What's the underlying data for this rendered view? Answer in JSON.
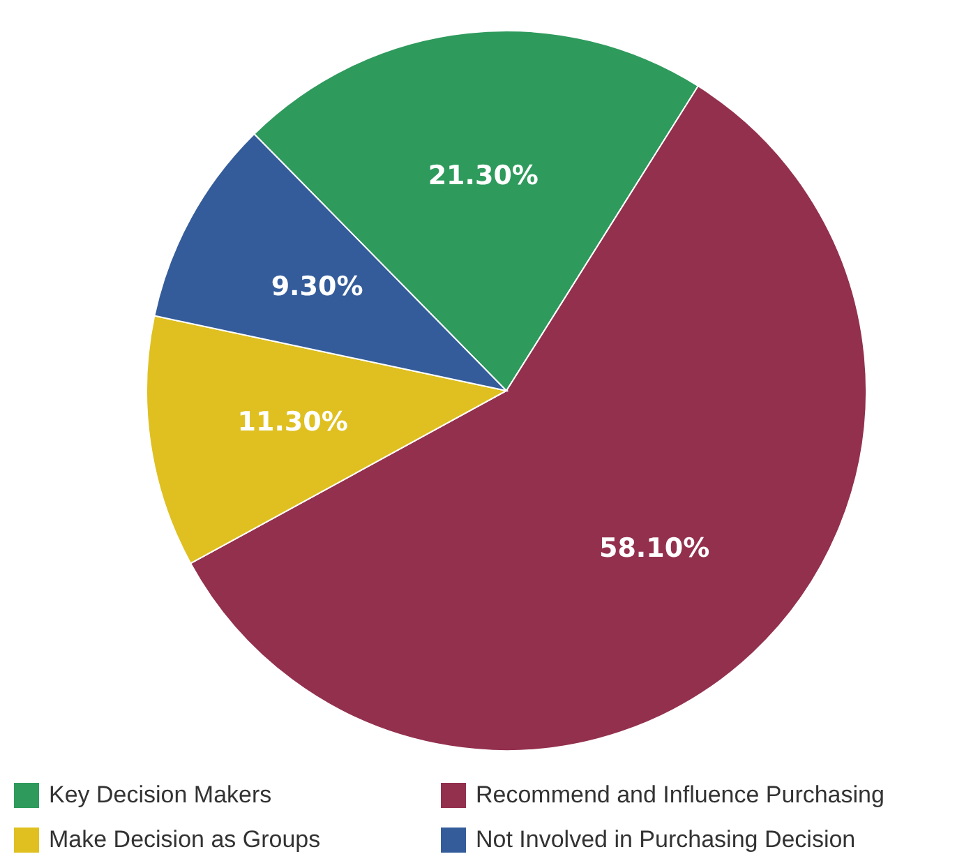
{
  "chart_data": {
    "type": "pie",
    "categories": [
      "Key Decision Makers",
      "Recommend and Influence Purchasing",
      "Make Decision as Groups",
      "Not Involved in Purchasing Decision"
    ],
    "values": [
      21.3,
      58.1,
      11.3,
      9.3
    ],
    "value_labels": [
      "21.30%",
      "58.10%",
      "11.30%",
      "9.30%"
    ],
    "colors": [
      "#2e9a5c",
      "#93304e",
      "#dfc020",
      "#345c9a"
    ],
    "legend": "bottom"
  }
}
